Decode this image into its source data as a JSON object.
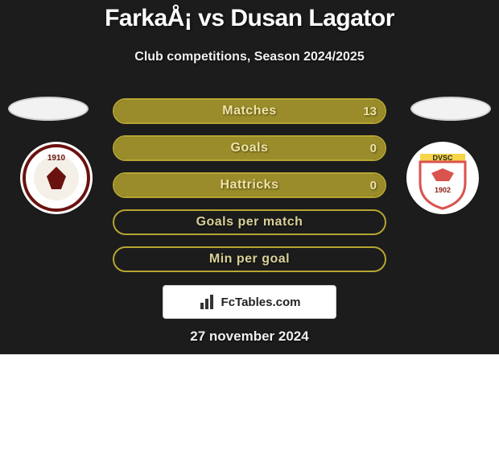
{
  "title": "FarkaÅ¡ vs Dusan Lagator",
  "subtitle": "Club competitions, Season 2024/2025",
  "colors": {
    "dark_bg": "#1c1c1c",
    "bar_fill": "#9a8c2a",
    "bar_border": "#b6a532",
    "bar_text": "#efe3a6",
    "label_text": "#d8cf96",
    "oval_bg": "#f2f2f2",
    "oval_border": "#cfcfcf",
    "white": "#ffffff"
  },
  "crest_left": {
    "ring_border": "#6a1210",
    "center_fill": "#f4f0e8",
    "year": "1910",
    "year_color": "#6a1210"
  },
  "crest_right": {
    "top_text": "DVSC",
    "top_bg": "#f7d548",
    "body_fill": "#ffffff",
    "body_border": "#d9534f",
    "year": "1902",
    "year_color": "#8a1c12"
  },
  "bars": [
    {
      "label": "Matches",
      "value": "13",
      "fill_pct": 100,
      "show_value": true
    },
    {
      "label": "Goals",
      "value": "0",
      "fill_pct": 100,
      "show_value": true
    },
    {
      "label": "Hattricks",
      "value": "0",
      "fill_pct": 100,
      "show_value": true
    },
    {
      "label": "Goals per match",
      "value": "",
      "fill_pct": 0,
      "show_value": false
    },
    {
      "label": "Min per goal",
      "value": "",
      "fill_pct": 0,
      "show_value": false
    }
  ],
  "plate_text": "FcTables.com",
  "date": "27 november 2024"
}
